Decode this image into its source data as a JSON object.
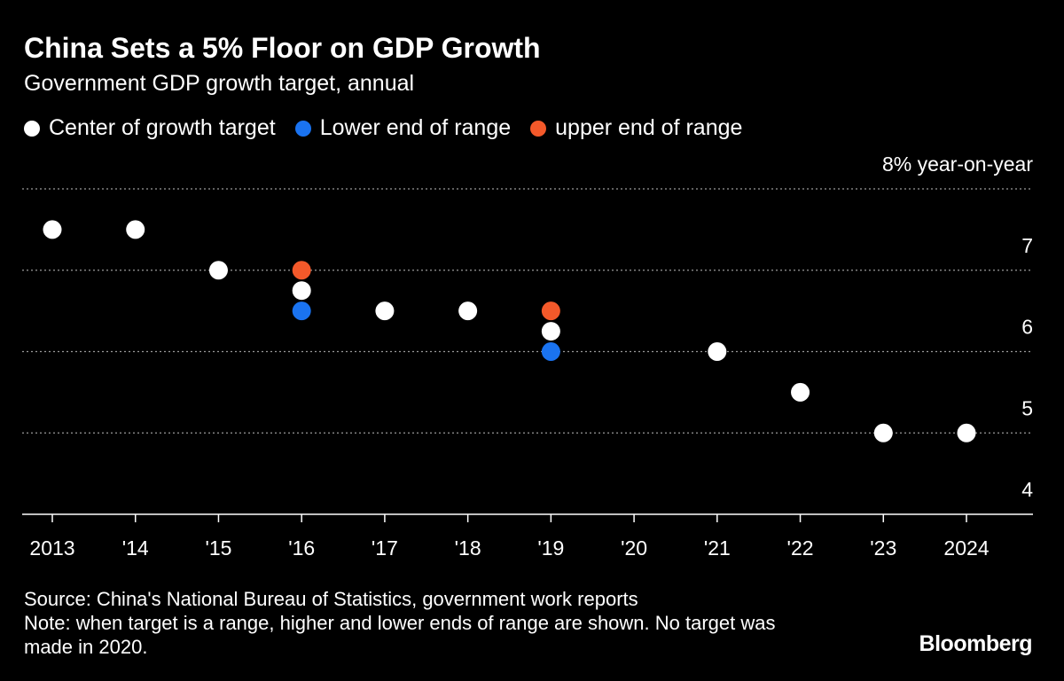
{
  "chart_data": {
    "type": "dot",
    "title": "China Sets a 5% Floor on GDP Growth",
    "subtitle": "Government GDP growth target, annual",
    "categories": [
      "2013",
      "'14",
      "'15",
      "'16",
      "'17",
      "'18",
      "'19",
      "'20",
      "'21",
      "'22",
      "'23",
      "2024"
    ],
    "series": [
      {
        "name": "Center of growth target",
        "color": "#ffffff",
        "values": [
          7.5,
          7.5,
          7,
          6.75,
          6.5,
          6.5,
          6.25,
          null,
          6,
          5.5,
          5,
          5
        ]
      },
      {
        "name": "Lower end of range",
        "color": "#1a73f0",
        "values": [
          null,
          null,
          null,
          6.5,
          null,
          null,
          6,
          null,
          null,
          null,
          null,
          null
        ]
      },
      {
        "name": "upper end of range",
        "color": "#f4592a",
        "values": [
          null,
          null,
          null,
          7,
          null,
          null,
          6.5,
          null,
          null,
          null,
          null,
          null
        ]
      }
    ],
    "ylim": [
      4,
      8
    ],
    "yticks": [
      {
        "value": 8,
        "label": "8% year-on-year"
      },
      7,
      6,
      5,
      4
    ],
    "grid": true,
    "source": "Source: China's National Bureau of Statistics, government work reports",
    "note": "Note: when target is a range, higher and lower ends of range are shown. No target was made in 2020.",
    "brand": "Bloomberg"
  }
}
